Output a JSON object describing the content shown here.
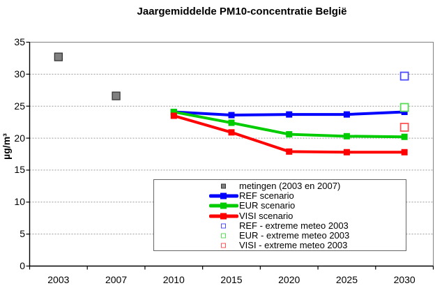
{
  "title": "Jaargemiddelde PM10-concentratie België",
  "y_axis": {
    "label": "µg/m³",
    "min": 0,
    "max": 35,
    "step": 5
  },
  "chart_data": {
    "type": "line",
    "title": "Jaargemiddelde PM10-concentratie België",
    "xlabel": "",
    "ylabel": "µg/m³",
    "ylim": [
      0,
      35
    ],
    "ytick_step": 5,
    "grid": "horizontal-dotted",
    "legend_position": "inside-bottom",
    "categories": [
      "2003",
      "2007",
      "2010",
      "2015",
      "2020",
      "2025",
      "2030"
    ],
    "series": [
      {
        "name": "metingen (2003 en 2007)",
        "type": "scatter",
        "marker": "square-filled",
        "color": "#808080",
        "marker_border": "#333333",
        "values": [
          32.7,
          26.6,
          null,
          null,
          null,
          null,
          null
        ]
      },
      {
        "name": "REF scenario",
        "type": "line",
        "marker": "square-filled",
        "color": "#0000FF",
        "values": [
          null,
          null,
          24.1,
          23.6,
          23.7,
          23.7,
          24.1
        ]
      },
      {
        "name": "EUR scenario",
        "type": "line",
        "marker": "square-filled",
        "color": "#00CC00",
        "values": [
          null,
          null,
          24.1,
          22.4,
          20.6,
          20.3,
          20.2
        ]
      },
      {
        "name": "VISI scenario",
        "type": "line",
        "marker": "square-filled",
        "color": "#FF0000",
        "values": [
          null,
          null,
          23.5,
          20.9,
          17.9,
          17.8,
          17.8
        ]
      },
      {
        "name": "REF - extreme meteo 2003",
        "type": "scatter",
        "marker": "square-open",
        "color": "#4D4DFF",
        "values": [
          null,
          null,
          null,
          null,
          null,
          null,
          29.7
        ]
      },
      {
        "name": "EUR - extreme meteo 2003",
        "type": "scatter",
        "marker": "square-open",
        "color": "#55DD55",
        "values": [
          null,
          null,
          null,
          null,
          null,
          null,
          24.8
        ]
      },
      {
        "name": "VISI - extreme meteo 2003",
        "type": "scatter",
        "marker": "square-open",
        "color": "#FF5555",
        "values": [
          null,
          null,
          null,
          null,
          null,
          null,
          21.7
        ]
      }
    ],
    "colors": {
      "gridline": "#999999",
      "plot_border": "#808080",
      "axis_line": "#000000"
    }
  }
}
